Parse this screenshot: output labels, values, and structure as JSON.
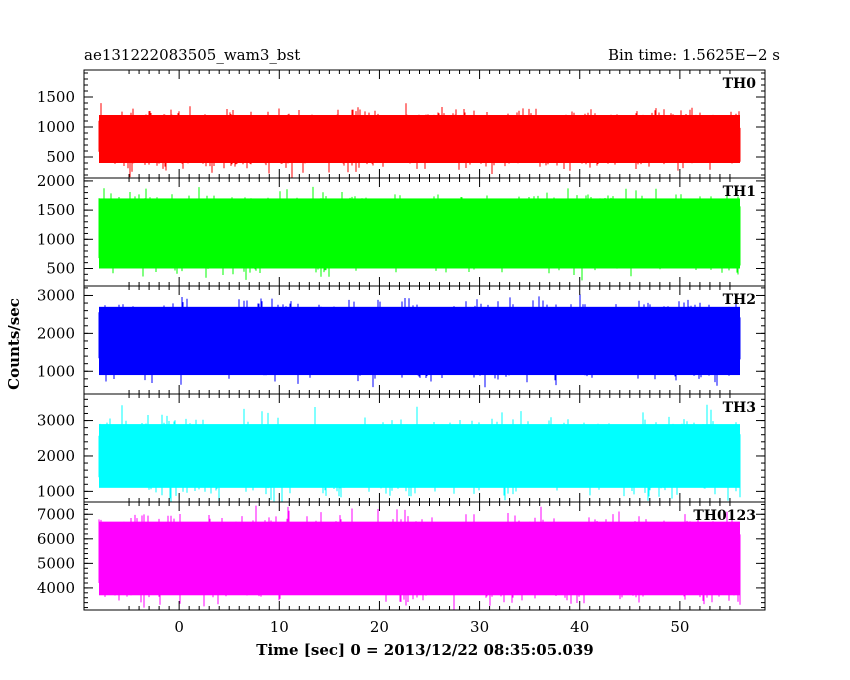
{
  "chart_data": {
    "type": "line",
    "title_left": "ae131222083505_wam3_bst",
    "title_right": "Bin time: 1.5625E−2 s",
    "xlabel": "Time [sec] 0 = 2013/12/22 08:35:05.039",
    "ylabel": "Counts/sec",
    "xlim": [
      -9.5,
      58.5
    ],
    "data_xrange": [
      -8,
      56
    ],
    "x_ticks": [
      0,
      10,
      20,
      30,
      40,
      50
    ],
    "x_tick_labels": [
      "0",
      "10",
      "20",
      "30",
      "40",
      "50"
    ],
    "grid": false,
    "legend": "none",
    "panels": [
      {
        "name": "TH0",
        "color": "#ff0000",
        "ylim": [
          150,
          1950
        ],
        "y_ticks": [
          500,
          1000,
          1500
        ],
        "y_tick_labels": [
          "500",
          "1000",
          "1500"
        ],
        "mean": 800,
        "sigma": 180,
        "band_low": 400,
        "band_high": 1200
      },
      {
        "name": "TH1",
        "color": "#00ff00",
        "ylim": [
          200,
          2050
        ],
        "y_ticks": [
          500,
          1000,
          1500,
          2000
        ],
        "y_tick_labels": [
          "500",
          "1000",
          "1500",
          "2000"
        ],
        "mean": 1100,
        "sigma": 250,
        "band_low": 500,
        "band_high": 1700
      },
      {
        "name": "TH2",
        "color": "#0000ff",
        "ylim": [
          400,
          3250
        ],
        "y_ticks": [
          1000,
          2000,
          3000
        ],
        "y_tick_labels": [
          "1000",
          "2000",
          "3000"
        ],
        "mean": 1800,
        "sigma": 380,
        "band_low": 900,
        "band_high": 2700
      },
      {
        "name": "TH3",
        "color": "#00ffff",
        "ylim": [
          700,
          3750
        ],
        "y_ticks": [
          1000,
          2000,
          3000
        ],
        "y_tick_labels": [
          "1000",
          "2000",
          "3000"
        ],
        "mean": 2000,
        "sigma": 400,
        "band_low": 1100,
        "band_high": 2900
      },
      {
        "name": "TH0123",
        "color": "#ff00ff",
        "ylim": [
          3100,
          7500
        ],
        "y_ticks": [
          4000,
          5000,
          6000,
          7000
        ],
        "y_tick_labels": [
          "4000",
          "5000",
          "6000",
          "7000"
        ],
        "mean": 5200,
        "sigma": 650,
        "band_low": 3700,
        "band_high": 6700
      }
    ]
  }
}
